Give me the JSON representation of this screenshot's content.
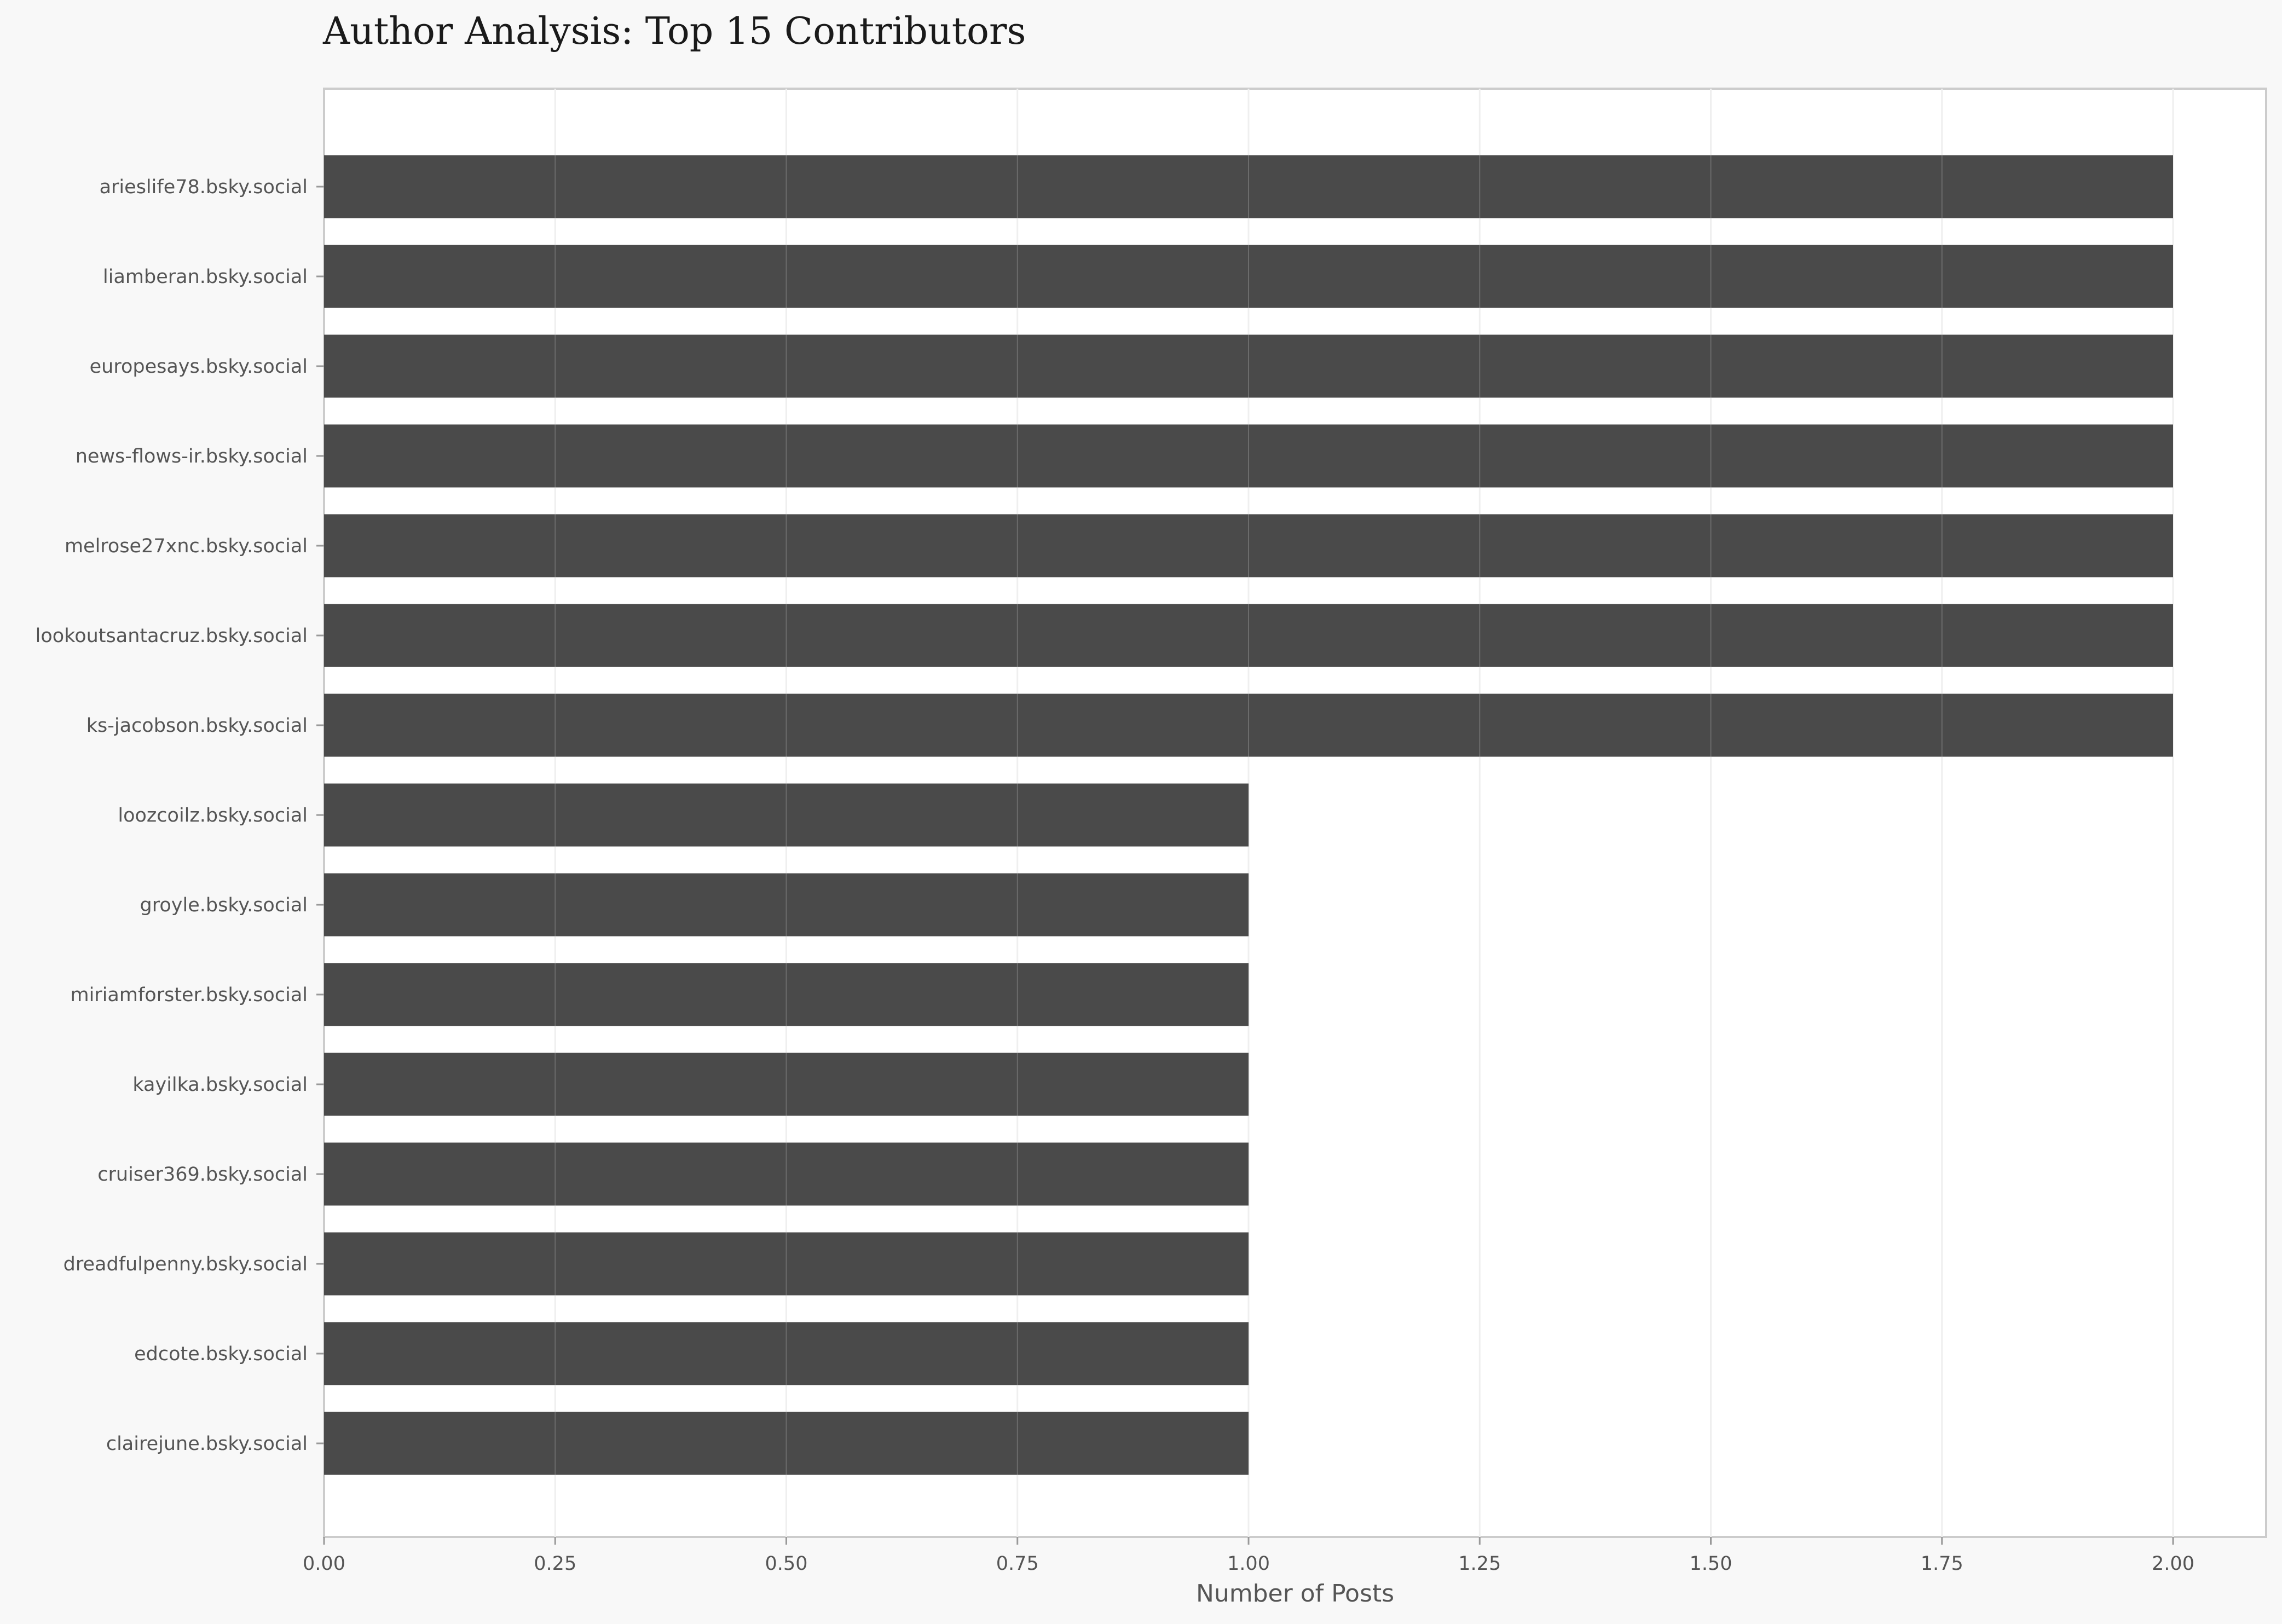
{
  "chart_data": {
    "type": "bar",
    "orientation": "horizontal",
    "title": "Author Analysis: Top 15 Contributors",
    "xlabel": "Number of Posts",
    "ylabel": "",
    "categories": [
      "arieslife78.bsky.social",
      "liamberan.bsky.social",
      "europesays.bsky.social",
      "news-flows-ir.bsky.social",
      "melrose27xnc.bsky.social",
      "lookoutsantacruz.bsky.social",
      "ks-jacobson.bsky.social",
      "loozcoilz.bsky.social",
      "groyle.bsky.social",
      "miriamforster.bsky.social",
      "kayilka.bsky.social",
      "cruiser369.bsky.social",
      "dreadfulpenny.bsky.social",
      "edcote.bsky.social",
      "clairejune.bsky.social"
    ],
    "values": [
      2,
      2,
      2,
      2,
      2,
      2,
      2,
      1,
      1,
      1,
      1,
      1,
      1,
      1,
      1
    ],
    "xlim": [
      0,
      2.1
    ],
    "xticks": [
      "0.00",
      "0.25",
      "0.50",
      "0.75",
      "1.00",
      "1.25",
      "1.50",
      "1.75",
      "2.00"
    ],
    "grid": true,
    "colors": {
      "bar": "#4a4a4a",
      "grid": "#efefef",
      "background": "#f8f8f8",
      "plot_background": "#ffffff",
      "frame": "#cccccc"
    }
  }
}
